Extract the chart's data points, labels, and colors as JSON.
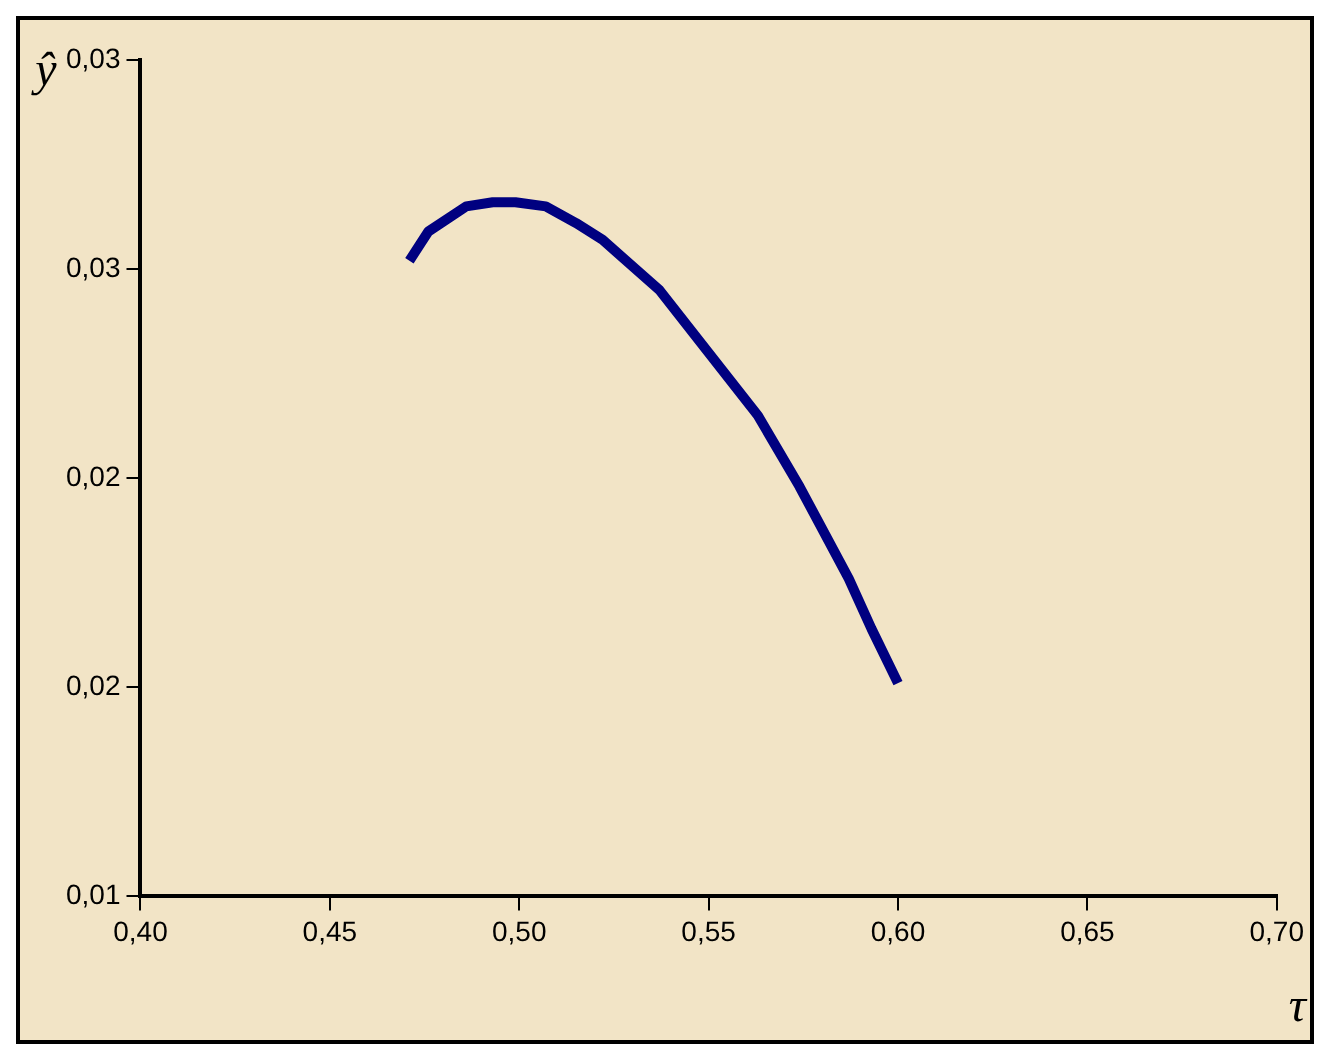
{
  "chart_data": {
    "type": "line",
    "xlabel": "τ",
    "ylabel": "ŷ",
    "xlim": [
      0.4,
      0.7
    ],
    "xticks": [
      {
        "value": 0.4,
        "label": "0,40"
      },
      {
        "value": 0.45,
        "label": "0,45"
      },
      {
        "value": 0.5,
        "label": "0,50"
      },
      {
        "value": 0.55,
        "label": "0,55"
      },
      {
        "value": 0.6,
        "label": "0,60"
      },
      {
        "value": 0.65,
        "label": "0,65"
      },
      {
        "value": 0.7,
        "label": "0,70"
      }
    ],
    "ylim": [
      0.01,
      0.03
    ],
    "yticks": [
      {
        "value": 0.01,
        "label": "0,01"
      },
      {
        "value": 0.015,
        "label": "0,02"
      },
      {
        "value": 0.02,
        "label": "0,02"
      },
      {
        "value": 0.025,
        "label": "0,03"
      },
      {
        "value": 0.03,
        "label": "0,03"
      }
    ],
    "grid": false,
    "legend": false,
    "marker": "none",
    "line_style": "solid",
    "series": [
      {
        "color": "#000080",
        "x": [
          0.471,
          0.476,
          0.486,
          0.493,
          0.499,
          0.507,
          0.515,
          0.522,
          0.537,
          0.55,
          0.563,
          0.574,
          0.587,
          0.593,
          0.6
        ],
        "values": [
          0.0252,
          0.0259,
          0.0265,
          0.0266,
          0.0266,
          0.0265,
          0.0261,
          0.0257,
          0.0245,
          0.023,
          0.0215,
          0.0198,
          0.0176,
          0.0164,
          0.0151
        ]
      }
    ]
  }
}
